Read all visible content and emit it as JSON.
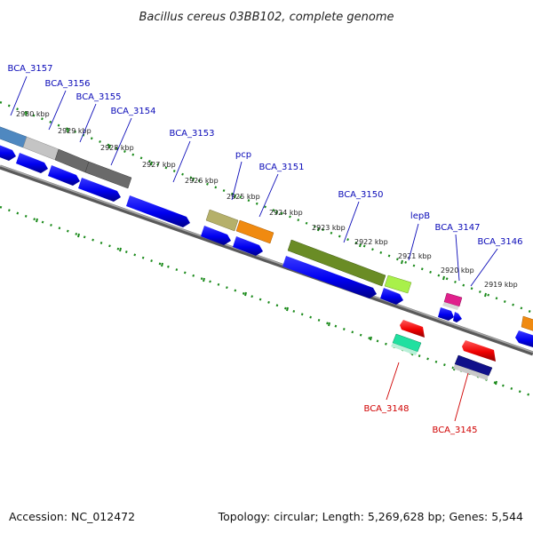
{
  "title": "Bacillus cereus 03BB102, complete genome",
  "footer": {
    "accession": "Accession: NC_012472",
    "summary": "Topology: circular; Length: 5,269,628 bp; Genes: 5,544"
  },
  "colors": {
    "forward_label": "#0a0ab8",
    "reverse_label": "#d00000",
    "backbone": "#7a7a7a",
    "tick": "#1a8a1a"
  },
  "kbp_ticks": [
    "2930 kbp",
    "2929 kbp",
    "2928 kbp",
    "2927 kbp",
    "2926 kbp",
    "2925 kbp",
    "2924 kbp",
    "2923 kbp",
    "2922 kbp",
    "2921 kbp",
    "2920 kbp",
    "2919 kbp"
  ],
  "forward_labels": [
    "BCA_3157",
    "BCA_3156",
    "BCA_3155",
    "BCA_3154",
    "BCA_3153",
    "pcp",
    "BCA_3151",
    "BCA_3150",
    "lepB",
    "BCA_3147",
    "BCA_3146"
  ],
  "reverse_labels": [
    "BCA_3148",
    "BCA_3145"
  ],
  "genes": [
    {
      "name": "BCA_3157",
      "strand": "+",
      "color": "#4f88c0"
    },
    {
      "name": "BCA_3156",
      "strand": "+",
      "color": "#c4c4c4"
    },
    {
      "name": "BCA_3155",
      "strand": "+",
      "color": "#6a6a6a"
    },
    {
      "name": "BCA_3154",
      "strand": "+",
      "color": "#6a6a6a"
    },
    {
      "name": "BCA_3153",
      "strand": "+",
      "color": "#2020ee"
    },
    {
      "name": "pcp",
      "strand": "+",
      "color": "#b5b06a"
    },
    {
      "name": "BCA_3151",
      "strand": "+",
      "color": "#f08a10"
    },
    {
      "name": "BCA_3150",
      "strand": "+",
      "color": "#6a8c25"
    },
    {
      "name": "lepB",
      "strand": "+",
      "color": "#a9f04a"
    },
    {
      "name": "BCA_3147",
      "strand": "+",
      "color": "#e0208c"
    },
    {
      "name": "BCA_3146",
      "strand": "+",
      "color": "#f08a10"
    },
    {
      "name": "BCA_3148",
      "strand": "-",
      "color": "#20e0a0"
    },
    {
      "name": "BCA_3145",
      "strand": "-",
      "color": "#10108a"
    }
  ]
}
